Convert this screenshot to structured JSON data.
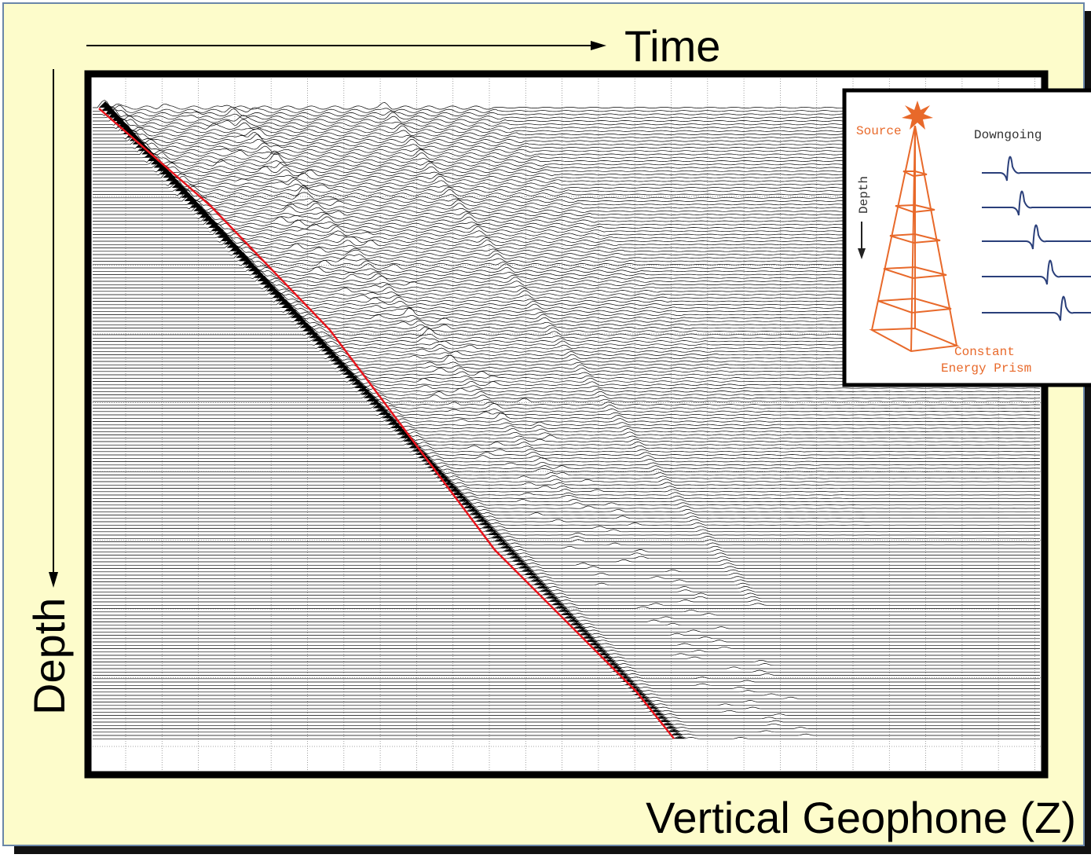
{
  "time_label": "Time",
  "depth_label": "Depth",
  "caption": "Vertical Geophone (Z)",
  "inset": {
    "source": "Source",
    "downgoing": "Downgoing",
    "depth": "Depth",
    "prism_line1": "Constant",
    "prism_line2": "Energy Prism"
  }
}
